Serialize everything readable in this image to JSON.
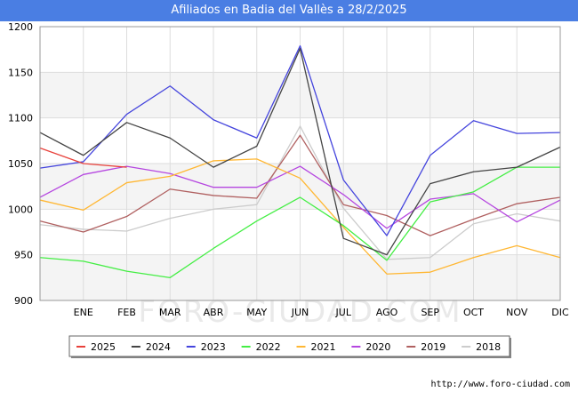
{
  "title": "Afiliados en Badia del Vallès a 28/2/2025",
  "source": "http://www.foro-ciudad.com",
  "watermark": "FORO-CIUDAD.COM",
  "chart_data": {
    "type": "line",
    "title": "Afiliados en Badia del Vallès a 28/2/2025",
    "xlabel": "",
    "ylabel": "",
    "categories": [
      "",
      "ENE",
      "FEB",
      "MAR",
      "ABR",
      "MAY",
      "JUN",
      "JUL",
      "AGO",
      "SEP",
      "OCT",
      "NOV",
      "DIC"
    ],
    "ylim": [
      900,
      1200
    ],
    "yticks": [
      900,
      950,
      1000,
      1050,
      1100,
      1150,
      1200
    ],
    "grid": true,
    "legend_position": "bottom",
    "series": [
      {
        "name": "2025",
        "color": "#e8413b",
        "values": [
          1067,
          1050,
          1046,
          null,
          null,
          null,
          null,
          null,
          null,
          null,
          null,
          null,
          null
        ]
      },
      {
        "name": "2024",
        "color": "#444444",
        "values": [
          1084,
          1059,
          1095,
          1078,
          1046,
          1069,
          1176,
          968,
          950,
          1028,
          1041,
          1046,
          1068
        ]
      },
      {
        "name": "2023",
        "color": "#4444dd",
        "values": [
          1045,
          1052,
          1104,
          1135,
          1098,
          1078,
          1179,
          1032,
          971,
          1059,
          1097,
          1083,
          1084
        ]
      },
      {
        "name": "2022",
        "color": "#44ee44",
        "values": [
          947,
          943,
          932,
          925,
          957,
          987,
          1013,
          982,
          944,
          1008,
          1019,
          1046,
          1046
        ]
      },
      {
        "name": "2021",
        "color": "#ffb733",
        "values": [
          1010,
          999,
          1029,
          1036,
          1053,
          1055,
          1034,
          980,
          929,
          931,
          947,
          960,
          947
        ]
      },
      {
        "name": "2020",
        "color": "#b546e0",
        "values": [
          1013,
          1038,
          1047,
          1039,
          1024,
          1024,
          1047,
          1016,
          979,
          1011,
          1017,
          986,
          1010
        ]
      },
      {
        "name": "2019",
        "color": "#b06060",
        "values": [
          987,
          975,
          992,
          1022,
          1015,
          1012,
          1081,
          1005,
          993,
          971,
          989,
          1006,
          1013
        ]
      },
      {
        "name": "2018",
        "color": "#cccccc",
        "values": [
          983,
          978,
          976,
          990,
          1000,
          1005,
          1091,
          1001,
          945,
          947,
          984,
          995,
          987
        ]
      }
    ]
  }
}
